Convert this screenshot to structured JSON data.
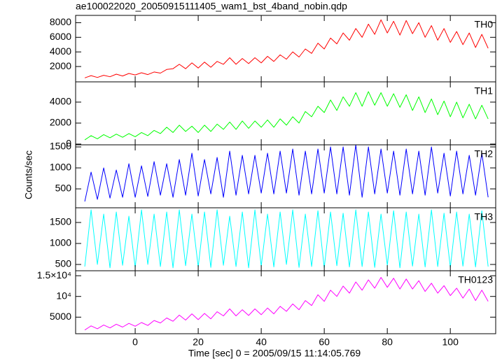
{
  "chart_data": {
    "title": "ae100022020_20050915111405_wam1_bst_4band_nobin.qdp",
    "x_label": "Time [sec] 0 = 2005/09/15 11:14:05.769",
    "y_label": "Counts/sec",
    "xlim": [
      -18.9,
      114.4
    ],
    "xticks": [
      0,
      20,
      40,
      60,
      80,
      100
    ],
    "x": [
      -16,
      -14,
      -12,
      -10,
      -8,
      -6,
      -4,
      -2,
      0,
      2,
      4,
      6,
      8,
      10,
      12,
      14,
      16,
      18,
      20,
      22,
      24,
      26,
      28,
      30,
      32,
      34,
      36,
      38,
      40,
      42,
      44,
      46,
      48,
      50,
      52,
      54,
      56,
      58,
      60,
      62,
      64,
      66,
      68,
      70,
      72,
      74,
      76,
      78,
      80,
      82,
      84,
      86,
      88,
      90,
      92,
      94,
      96,
      98,
      100,
      102,
      104,
      106,
      108,
      110,
      112
    ],
    "panels": [
      {
        "type": "line",
        "name": "TH0",
        "color": "#ff0000",
        "ylim": [
          -100,
          9000
        ],
        "yticks": [
          2000,
          4000,
          6000,
          8000
        ],
        "values": [
          450,
          750,
          500,
          800,
          600,
          950,
          700,
          1050,
          850,
          1150,
          900,
          1250,
          1100,
          1600,
          1700,
          2300,
          1700,
          2500,
          1800,
          2600,
          1900,
          2700,
          2300,
          3200,
          2300,
          3100,
          2400,
          3200,
          2500,
          3400,
          2700,
          3600,
          3000,
          4000,
          3300,
          4400,
          3800,
          5200,
          4400,
          5900,
          5100,
          6600,
          5600,
          7200,
          6000,
          7800,
          6400,
          8400,
          6600,
          8200,
          6300,
          8300,
          6500,
          8000,
          6000,
          7600,
          5600,
          7200,
          5300,
          6800,
          5000,
          6600,
          4600,
          6400,
          4500
        ]
      },
      {
        "type": "line",
        "name": "TH1",
        "color": "#00ff00",
        "ylim": [
          -70,
          5930
        ],
        "yticks": [
          0,
          2000,
          4000
        ],
        "values": [
          400,
          800,
          500,
          900,
          600,
          950,
          650,
          1000,
          700,
          1100,
          800,
          1300,
          1000,
          1600,
          1100,
          1800,
          1200,
          1700,
          1100,
          1800,
          1200,
          1900,
          1400,
          2100,
          1400,
          2200,
          1500,
          2200,
          1600,
          2300,
          1600,
          2400,
          1800,
          2600,
          2000,
          3100,
          2600,
          3600,
          3000,
          4200,
          3200,
          4500,
          3600,
          4900,
          3600,
          5000,
          3700,
          4900,
          3600,
          4800,
          3500,
          4700,
          3200,
          4500,
          3000,
          4300,
          2800,
          4100,
          2600,
          4000,
          2500,
          3800,
          2400,
          3700,
          2400
        ]
      },
      {
        "type": "line",
        "name": "TH2",
        "color": "#0000ff",
        "ylim": [
          50,
          1550
        ],
        "yticks": [
          500,
          1000,
          1500
        ],
        "values": [
          200,
          900,
          250,
          1000,
          280,
          950,
          300,
          1100,
          300,
          1050,
          320,
          1150,
          350,
          1100,
          300,
          1200,
          350,
          1350,
          330,
          1200,
          380,
          1250,
          300,
          1400,
          350,
          1300,
          380,
          1300,
          400,
          1350,
          380,
          1400,
          400,
          1450,
          350,
          1400,
          380,
          1450,
          400,
          1500,
          380,
          1500,
          350,
          1550,
          300,
          1500,
          380,
          1450,
          400,
          1400,
          350,
          1450,
          380,
          1400,
          350,
          1500,
          400,
          1350,
          330,
          1400,
          380,
          1300,
          350,
          1350,
          300
        ]
      },
      {
        "type": "line",
        "name": "TH3",
        "color": "#00ffff",
        "ylim": [
          350,
          1850
        ],
        "yticks": [
          500,
          1000,
          1500
        ],
        "values": [
          450,
          1800,
          500,
          1700,
          420,
          1750,
          480,
          1650,
          430,
          1800,
          500,
          1700,
          450,
          1750,
          420,
          1800,
          470,
          1700,
          440,
          1750,
          430,
          1800,
          480,
          1650,
          450,
          1750,
          420,
          1800,
          460,
          1700,
          440,
          1750,
          500,
          1800,
          430,
          1700,
          450,
          1780,
          420,
          1750,
          470,
          1720,
          440,
          1800,
          450,
          1750,
          430,
          1700,
          480,
          1780,
          420,
          1750,
          460,
          1700,
          440,
          1800,
          450,
          1720,
          430,
          1750,
          460,
          1700,
          440,
          1780,
          450
        ]
      },
      {
        "type": "line",
        "name": "TH0123",
        "color": "#ff00ff",
        "ylim": [
          1000,
          16200
        ],
        "yticks": [
          5000,
          {
            "value": 10000,
            "label": "10⁴"
          },
          {
            "value": 15000,
            "label": "1.5×10⁴"
          }
        ],
        "values": [
          1900,
          2900,
          2200,
          3100,
          2400,
          3300,
          2600,
          3500,
          2800,
          3700,
          3000,
          4200,
          3600,
          4800,
          4000,
          5500,
          4300,
          5800,
          4400,
          5900,
          4600,
          6300,
          5300,
          7000,
          5300,
          6800,
          5400,
          7000,
          5600,
          7200,
          5800,
          7600,
          6400,
          8200,
          6800,
          9000,
          7800,
          10400,
          8800,
          11500,
          10000,
          12500,
          10800,
          13500,
          11500,
          14000,
          12000,
          14600,
          12200,
          14400,
          11800,
          14200,
          11800,
          13800,
          11200,
          13200,
          10800,
          12600,
          10200,
          12000,
          9600,
          11800,
          9000,
          11500,
          8800
        ]
      }
    ]
  }
}
